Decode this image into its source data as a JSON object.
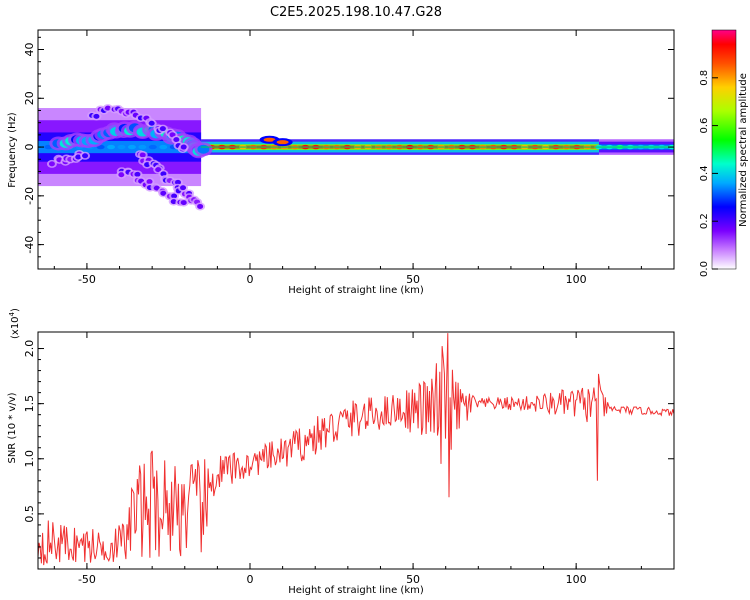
{
  "title": "C2E5.2025.198.10.47.G28",
  "chart_data": [
    {
      "type": "heatmap",
      "xlabel": "Height of straight line (km)",
      "ylabel": "Frequency (Hz)",
      "xlim": [
        -65,
        130
      ],
      "ylim": [
        -50,
        48
      ],
      "x_ticks": [
        -50,
        0,
        50,
        100
      ],
      "y_ticks": [
        -40,
        -20,
        0,
        20,
        40
      ],
      "colorbar": {
        "label": "Normalized spectral amplitude",
        "range": [
          0.0,
          1.0
        ],
        "ticks": [
          0.0,
          0.2,
          0.4,
          0.6,
          0.8
        ]
      },
      "tick_labels_x": [
        "-50",
        "0",
        "50",
        "100"
      ],
      "tick_labels_y": [
        "-40",
        "-20",
        "0",
        "20",
        "40"
      ],
      "tick_labels_c": [
        "0.0",
        "0.2",
        "0.4",
        "0.6",
        "0.8"
      ],
      "ridge": {
        "frequency_center": 0,
        "segments": [
          {
            "x": [
              -65,
              -15
            ],
            "amplitude": 0.35,
            "spread_hz": 10
          },
          {
            "x": [
              -15,
              107
            ],
            "amplitude": 0.9,
            "spread_hz": 2
          },
          {
            "x": [
              107,
              130
            ],
            "amplitude": 0.45,
            "spread_hz": 2
          }
        ]
      },
      "scatter_tracks": [
        {
          "x": [
            -58,
            -50,
            -42,
            -35,
            -28,
            -22,
            -17,
            -14
          ],
          "y": [
            2,
            3,
            6,
            7,
            6,
            4,
            1,
            -2
          ]
        },
        {
          "x": [
            -48,
            -42,
            -36,
            -30,
            -24,
            -19
          ],
          "y": [
            13,
            16,
            14,
            10,
            4,
            -2
          ]
        },
        {
          "x": [
            -40,
            -35,
            -30,
            -25,
            -20
          ],
          "y": [
            -10,
            -12,
            -16,
            -20,
            -24
          ]
        },
        {
          "x": [
            -34,
            -30,
            -26,
            -22,
            -18,
            -15
          ],
          "y": [
            -3,
            -7,
            -12,
            -16,
            -20,
            -26
          ]
        },
        {
          "x": [
            -60,
            -55,
            -50
          ],
          "y": [
            -6,
            -4,
            -3
          ]
        }
      ],
      "bumps": [
        {
          "x": 6,
          "y": 3
        },
        {
          "x": 10,
          "y": 2
        }
      ]
    },
    {
      "type": "line",
      "xlabel": "Height of straight line (km)",
      "ylabel": "SNR (10 * v/v)",
      "y_multiplier": "(x10",
      "y_multiplier_exp": "4",
      "y_multiplier_close": ")",
      "xlim": [
        -65,
        130
      ],
      "ylim": [
        0,
        2.15
      ],
      "x_ticks": [
        -50,
        0,
        50,
        100
      ],
      "y_ticks": [
        0.5,
        1.0,
        1.5,
        2.0
      ],
      "tick_labels_x": [
        "-50",
        "0",
        "50",
        "100"
      ],
      "tick_labels_y": [
        "0.5",
        "1.0",
        "1.5",
        "2.0"
      ],
      "color": "#f03030",
      "envelope": [
        {
          "x": -65,
          "mean": 0.25,
          "amp": 0.22
        },
        {
          "x": -45,
          "mean": 0.2,
          "amp": 0.15
        },
        {
          "x": -38,
          "mean": 0.25,
          "amp": 0.2
        },
        {
          "x": -36,
          "mean": 0.5,
          "amp": 0.4
        },
        {
          "x": -30,
          "mean": 0.6,
          "amp": 0.5
        },
        {
          "x": -20,
          "mean": 0.55,
          "amp": 0.45
        },
        {
          "x": -13,
          "mean": 0.55,
          "amp": 0.45
        },
        {
          "x": -11,
          "mean": 0.85,
          "amp": 0.2
        },
        {
          "x": 0,
          "mean": 0.95,
          "amp": 0.12
        },
        {
          "x": 10,
          "mean": 1.05,
          "amp": 0.15
        },
        {
          "x": 20,
          "mean": 1.2,
          "amp": 0.18
        },
        {
          "x": 30,
          "mean": 1.35,
          "amp": 0.18
        },
        {
          "x": 45,
          "mean": 1.45,
          "amp": 0.15
        },
        {
          "x": 55,
          "mean": 1.45,
          "amp": 0.3
        },
        {
          "x": 59,
          "mean": 1.4,
          "amp": 0.65
        },
        {
          "x": 63,
          "mean": 1.45,
          "amp": 0.3
        },
        {
          "x": 70,
          "mean": 1.5,
          "amp": 0.05
        },
        {
          "x": 85,
          "mean": 1.5,
          "amp": 0.07
        },
        {
          "x": 100,
          "mean": 1.5,
          "amp": 0.15
        },
        {
          "x": 107,
          "mean": 1.5,
          "amp": 0.2
        },
        {
          "x": 110,
          "mean": 1.45,
          "amp": 0.04
        },
        {
          "x": 130,
          "mean": 1.42,
          "amp": 0.03
        }
      ],
      "spikes": [
        {
          "x": 60.5,
          "y": 2.15
        },
        {
          "x": 61,
          "y": 0.65
        },
        {
          "x": 106.5,
          "y": 0.8
        },
        {
          "x": 107,
          "y": 1.77
        }
      ]
    }
  ]
}
